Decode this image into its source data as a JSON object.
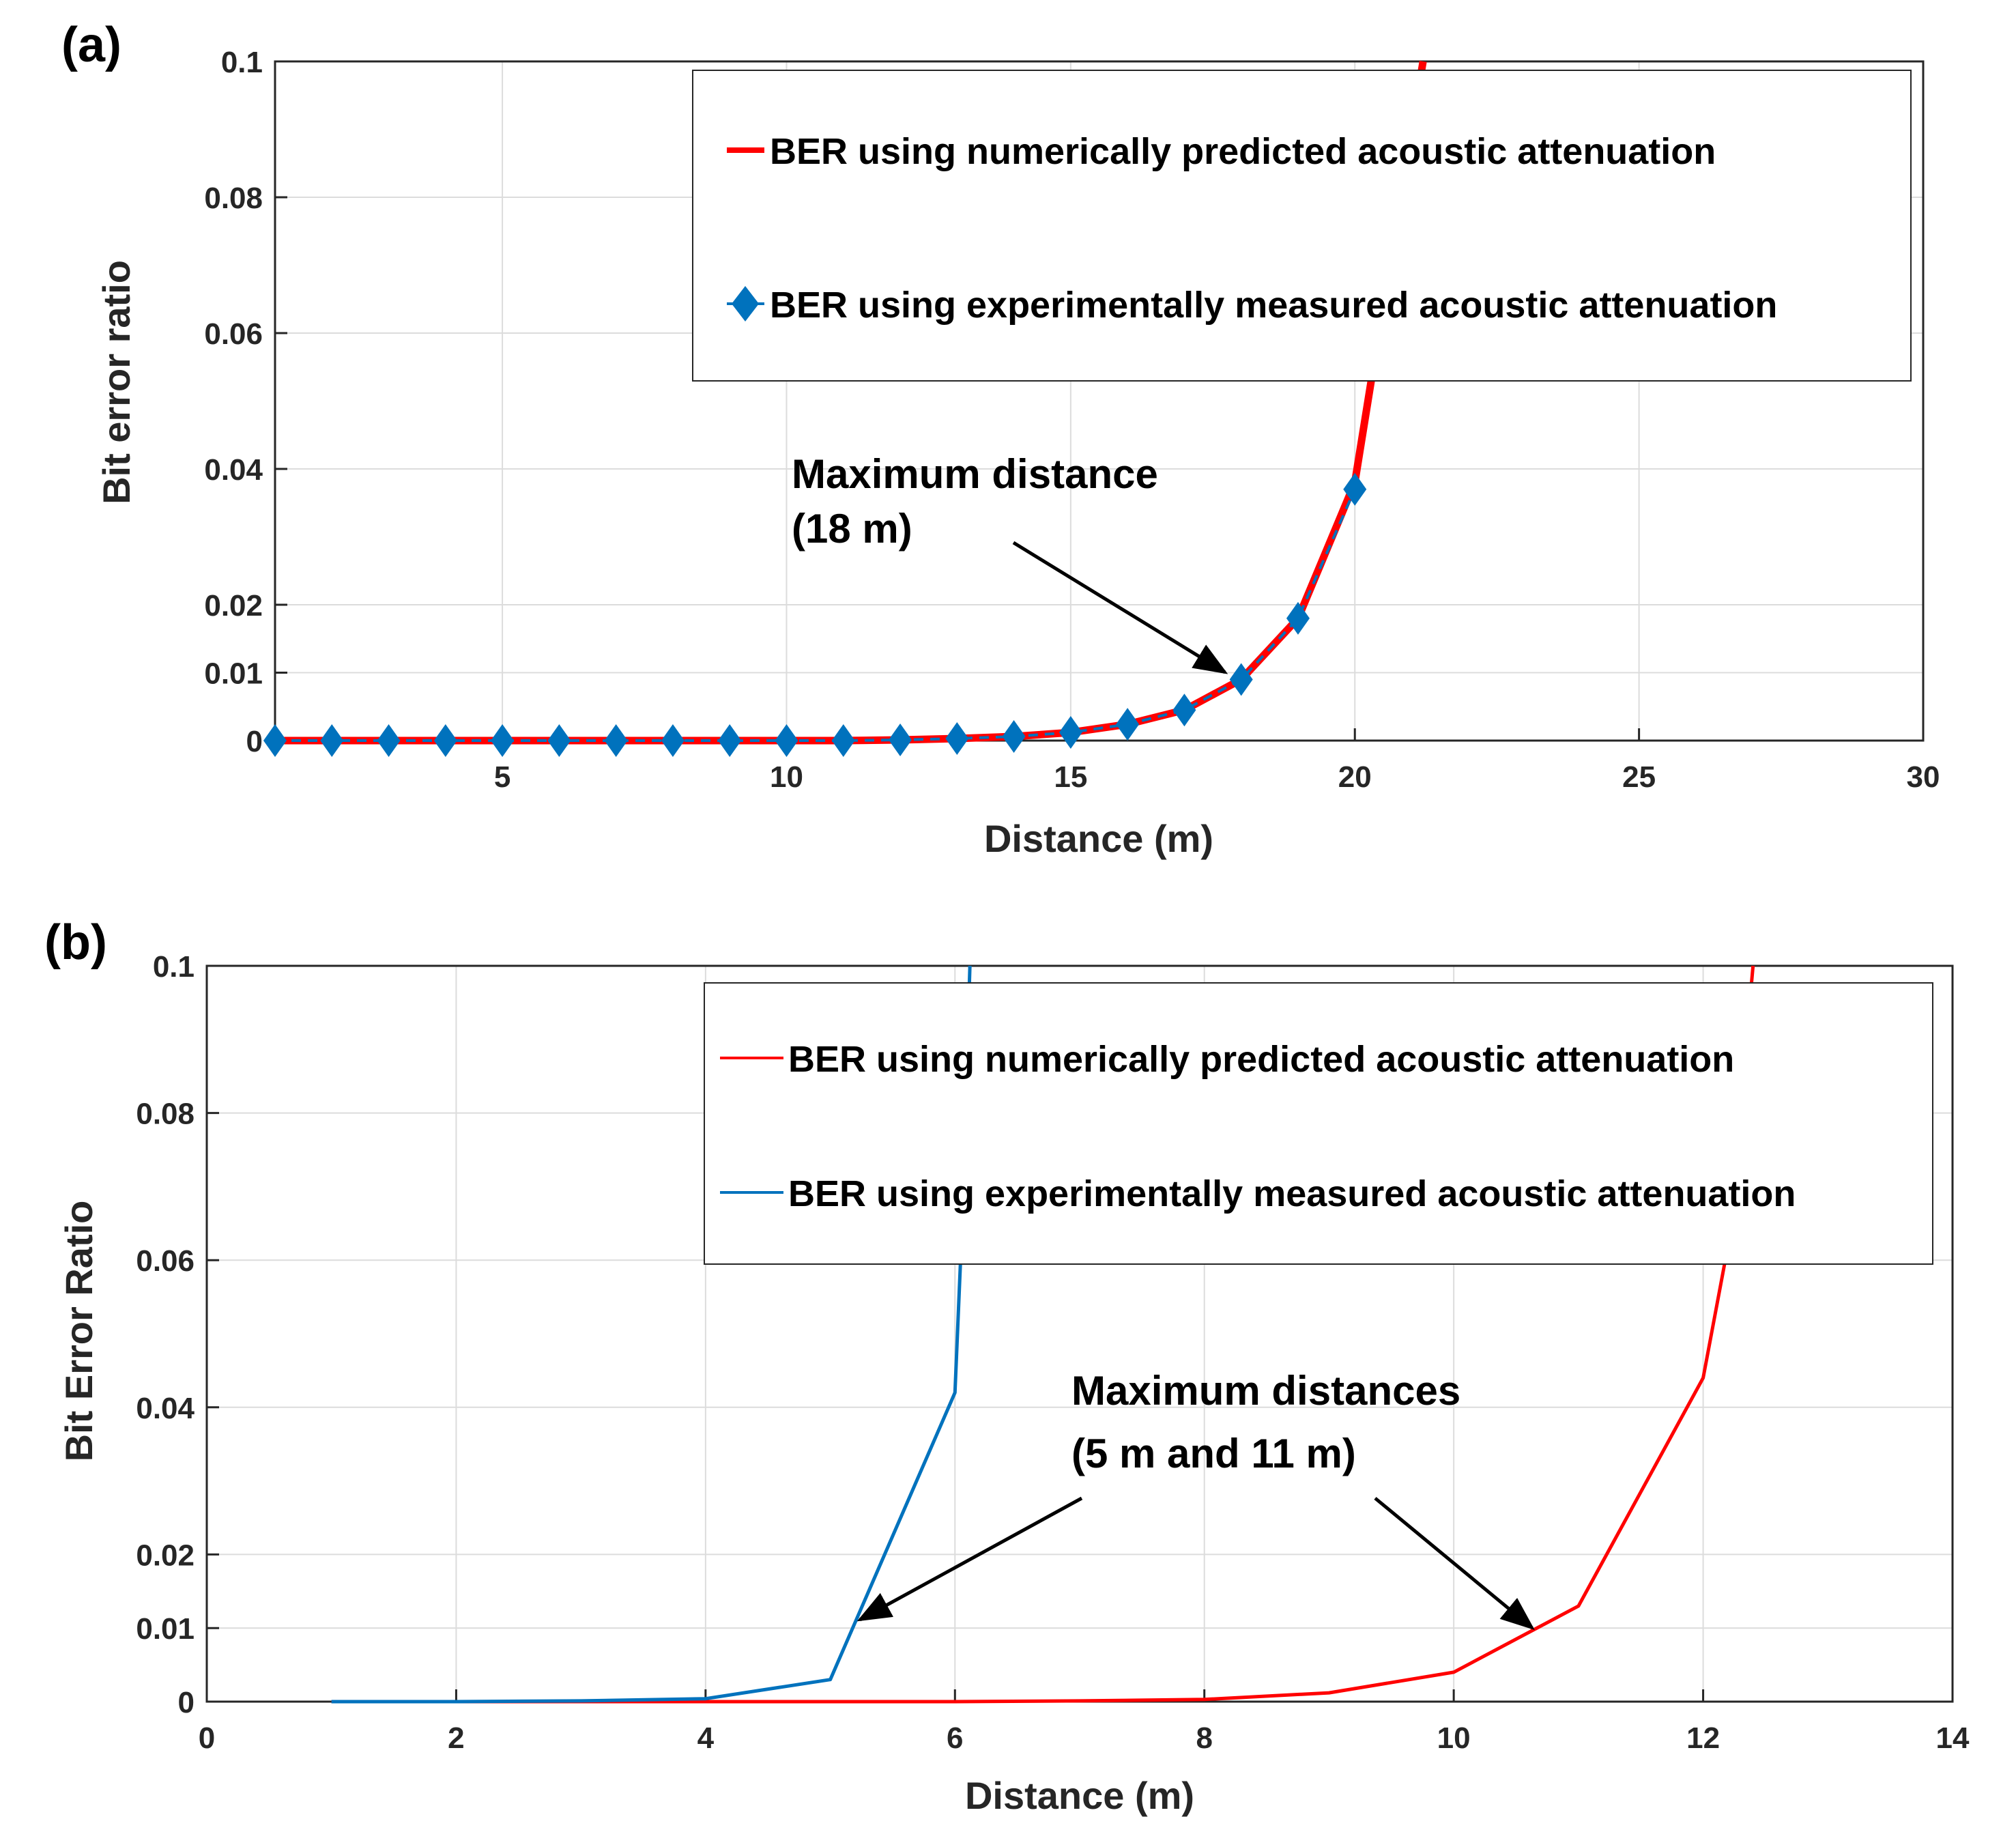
{
  "chart_data": [
    {
      "type": "line",
      "panel_label": "(a)",
      "xlabel": "Distance (m)",
      "ylabel": "Bit error ratio",
      "xlim": [
        1,
        30
      ],
      "ylim": [
        0,
        0.1
      ],
      "xticks": [
        5,
        10,
        15,
        20,
        25,
        30
      ],
      "xtick_labels": [
        "5",
        "10",
        "15",
        "20",
        "25",
        "30"
      ],
      "yticks": [
        0,
        0.01,
        0.02,
        0.04,
        0.06,
        0.08,
        0.1
      ],
      "ytick_labels": [
        "0",
        "0.01",
        "0.02",
        "0.04",
        "0.06",
        "0.08",
        "0.1"
      ],
      "grid": true,
      "legend_position": "top-right",
      "series": [
        {
          "name": "BER using numerically predicted acoustic attenuation",
          "color": "#ff0000",
          "marker": "none",
          "x": [
            1,
            2,
            3,
            4,
            5,
            6,
            7,
            8,
            9,
            10,
            11,
            12,
            13,
            14,
            15,
            16,
            17,
            18,
            19,
            20,
            21,
            21.2
          ],
          "y": [
            0,
            0,
            0,
            0,
            0,
            0,
            0,
            0,
            0,
            0,
            0,
            0.0001,
            0.0003,
            0.0006,
            0.0012,
            0.0024,
            0.0045,
            0.009,
            0.018,
            0.038,
            0.09,
            0.1
          ]
        },
        {
          "name": "BER using experimentally measured acoustic attenuation",
          "color": "#0072bd",
          "marker": "diamond",
          "x": [
            1,
            2,
            3,
            4,
            5,
            6,
            7,
            8,
            9,
            10,
            11,
            12,
            13,
            14,
            15,
            16,
            17,
            18,
            19,
            20
          ],
          "y": [
            0,
            0,
            0,
            0,
            0,
            0,
            0,
            0,
            0,
            0,
            0,
            0.0001,
            0.0003,
            0.0006,
            0.0012,
            0.0024,
            0.0045,
            0.009,
            0.018,
            0.037
          ]
        }
      ],
      "annotation": {
        "line1": "Maximum distance",
        "line2": "(18 m)",
        "points_to": [
          18,
          0.009
        ]
      }
    },
    {
      "type": "line",
      "panel_label": "(b)",
      "xlabel": "Distance (m)",
      "ylabel": "Bit Error Ratio",
      "xlim": [
        0,
        14
      ],
      "ylim": [
        0,
        0.1
      ],
      "xticks": [
        0,
        2,
        4,
        6,
        8,
        10,
        12,
        14
      ],
      "xtick_labels": [
        "0",
        "2",
        "4",
        "6",
        "8",
        "10",
        "12",
        "14"
      ],
      "yticks": [
        0,
        0.01,
        0.02,
        0.04,
        0.06,
        0.08,
        0.1
      ],
      "ytick_labels": [
        "0",
        "0.01",
        "0.02",
        "0.04",
        "0.06",
        "0.08",
        "0.1"
      ],
      "grid": true,
      "legend_position": "top-right",
      "series": [
        {
          "name": "BER using numerically predicted acoustic attenuation",
          "color": "#ff0000",
          "marker": "none",
          "x": [
            1,
            2,
            3,
            4,
            5,
            6,
            7,
            8,
            9,
            10,
            11,
            12,
            12.2,
            12.4
          ],
          "y": [
            0,
            0,
            0,
            0,
            0,
            0,
            0.0001,
            0.0003,
            0.0012,
            0.004,
            0.013,
            0.044,
            0.062,
            0.1
          ]
        },
        {
          "name": "BER using experimentally measured acoustic attenuation",
          "color": "#0072bd",
          "marker": "none",
          "x": [
            1,
            2,
            3,
            4,
            5,
            6,
            6.05,
            6.12
          ],
          "y": [
            0,
            0,
            0.0001,
            0.0004,
            0.003,
            0.042,
            0.062,
            0.1
          ]
        }
      ],
      "annotation": {
        "line1": "Maximum distances",
        "line2": "(5 m and 11 m)",
        "points_to": [
          [
            5.2,
            0.0105
          ],
          [
            10.7,
            0.0105
          ]
        ]
      }
    }
  ]
}
